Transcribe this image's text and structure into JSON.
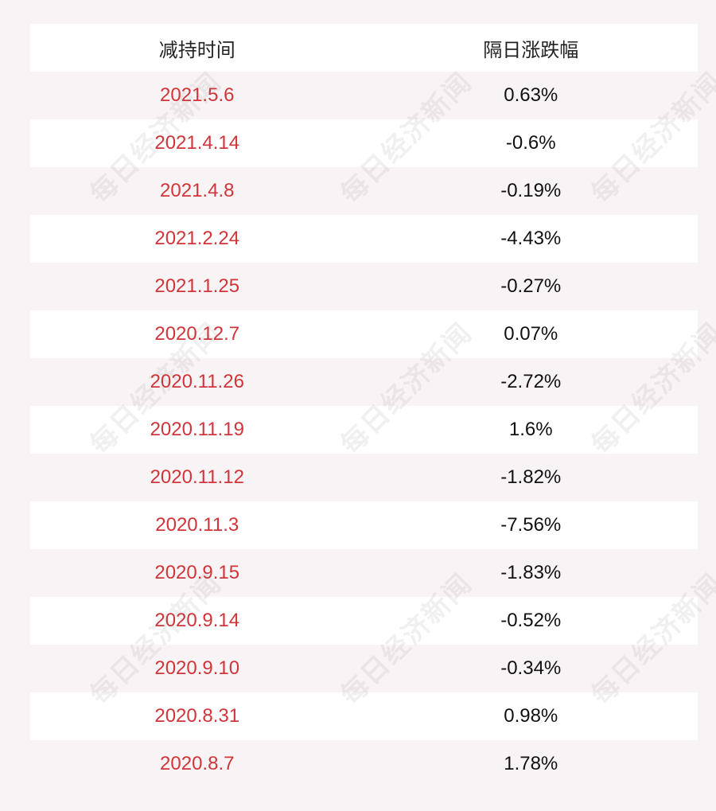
{
  "header": {
    "col_date": "减持时间",
    "col_change": "隔日涨跌幅"
  },
  "rows": [
    {
      "date": "2021.5.6",
      "change": "0.63%"
    },
    {
      "date": "2021.4.14",
      "change": "-0.6%"
    },
    {
      "date": "2021.4.8",
      "change": "-0.19%"
    },
    {
      "date": "2021.2.24",
      "change": "-4.43%"
    },
    {
      "date": "2021.1.25",
      "change": "-0.27%"
    },
    {
      "date": "2020.12.7",
      "change": "0.07%"
    },
    {
      "date": "2020.11.26",
      "change": "-2.72%"
    },
    {
      "date": "2020.11.19",
      "change": "1.6%"
    },
    {
      "date": "2020.11.12",
      "change": "-1.82%"
    },
    {
      "date": "2020.11.3",
      "change": "-7.56%"
    },
    {
      "date": "2020.9.15",
      "change": "-1.83%"
    },
    {
      "date": "2020.9.14",
      "change": "-0.52%"
    },
    {
      "date": "2020.9.10",
      "change": "-0.34%"
    },
    {
      "date": "2020.8.31",
      "change": "0.98%"
    },
    {
      "date": "2020.8.7",
      "change": "1.78%"
    }
  ],
  "watermark": "每日经济新闻",
  "colors": {
    "date_text": "#d0353a",
    "change_text": "#111111",
    "row_white": "#ffffff",
    "row_tinted": "#f8f4f5"
  }
}
